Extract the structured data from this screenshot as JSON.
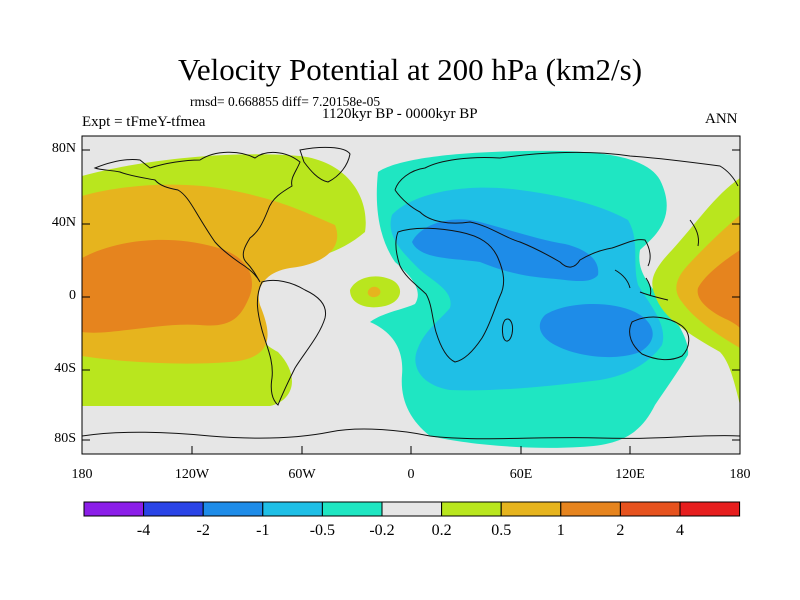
{
  "title": "Velocity Potential at 200 hPa (km2/s)",
  "stats": "rmsd= 0.668855  diff= 7.20158e-05",
  "period": "1120kyr BP - 0000kyr BP",
  "experiment": "Expt = tFmeY-tfmea",
  "season": "ANN",
  "lat_labels": [
    "80N",
    "40N",
    "0",
    "40S",
    "80S"
  ],
  "lon_labels": [
    "180",
    "120W",
    "60W",
    "0",
    "60E",
    "120E",
    "180"
  ],
  "colorbar": {
    "colors": [
      "#8b1ee8",
      "#2a44e6",
      "#1e8ce8",
      "#1fbfe6",
      "#1fe6c2",
      "#e6e6e6",
      "#b9e61e",
      "#e6b41e",
      "#e6841e",
      "#e6521e",
      "#e61e1e"
    ],
    "labels": [
      "-4",
      "-2",
      "-1",
      "-0.5",
      "-0.2",
      "0.2",
      "0.5",
      "1",
      "2",
      "4"
    ]
  }
}
